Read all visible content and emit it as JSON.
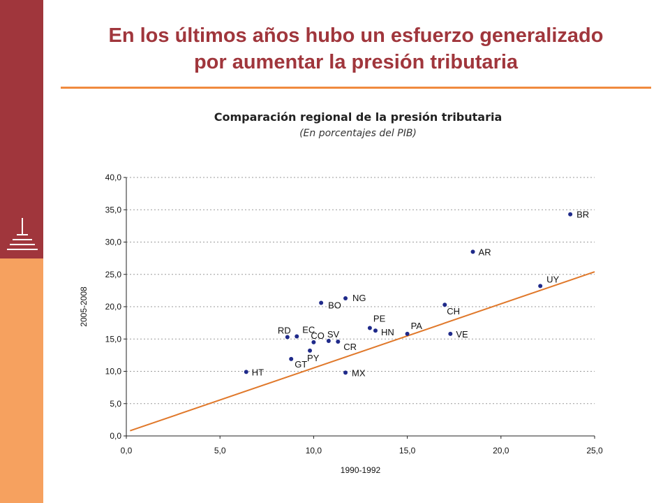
{
  "slide": {
    "title_line1": "En los últimos años hubo un esfuerzo generalizado",
    "title_line2": "por aumentar la presión tributaria"
  },
  "colors": {
    "sidebar_top": "#a0363c",
    "sidebar_bottom": "#f6a15f",
    "title": "#a0363c",
    "rule": "#f08a3e",
    "marker": "#1f2a8a",
    "trendline": "#e0782a"
  },
  "chart_data": {
    "type": "scatter",
    "title": "Comparación  regional de la presión tributaria",
    "subtitle": "(En porcentajes del PIB)",
    "xlabel": "1990-1992",
    "ylabel": "2005-2008",
    "xlim": [
      0,
      25
    ],
    "ylim": [
      0,
      40
    ],
    "x_ticks": [
      "0,0",
      "5,0",
      "10,0",
      "15,0",
      "20,0",
      "25,0"
    ],
    "y_ticks": [
      "0,0",
      "5,0",
      "10,0",
      "15,0",
      "20,0",
      "25,0",
      "30,0",
      "35,0",
      "40,0"
    ],
    "grid": true,
    "points": [
      {
        "label": "HT",
        "x": 6.4,
        "y": 9.9
      },
      {
        "label": "GT",
        "x": 8.8,
        "y": 11.9
      },
      {
        "label": "RD",
        "x": 8.6,
        "y": 15.3
      },
      {
        "label": "EC",
        "x": 9.1,
        "y": 15.4
      },
      {
        "label": "PY",
        "x": 9.8,
        "y": 13.2
      },
      {
        "label": "CO",
        "x": 10.0,
        "y": 14.5
      },
      {
        "label": "BO",
        "x": 10.4,
        "y": 20.6
      },
      {
        "label": "SV",
        "x": 10.8,
        "y": 14.7
      },
      {
        "label": "CR",
        "x": 11.3,
        "y": 14.6
      },
      {
        "label": "NG",
        "x": 11.7,
        "y": 21.3
      },
      {
        "label": "MX",
        "x": 11.7,
        "y": 9.8
      },
      {
        "label": "PE",
        "x": 13.0,
        "y": 16.7
      },
      {
        "label": "HN",
        "x": 13.3,
        "y": 16.3
      },
      {
        "label": "PA",
        "x": 15.0,
        "y": 15.8
      },
      {
        "label": "CH",
        "x": 17.0,
        "y": 20.3
      },
      {
        "label": "VE",
        "x": 17.3,
        "y": 15.8
      },
      {
        "label": "AR",
        "x": 18.5,
        "y": 28.5
      },
      {
        "label": "UY",
        "x": 22.1,
        "y": 23.2
      },
      {
        "label": "BR",
        "x": 23.7,
        "y": 34.3
      }
    ],
    "trendline": {
      "x": [
        0.2,
        25.0
      ],
      "y": [
        0.8,
        25.4
      ]
    }
  }
}
